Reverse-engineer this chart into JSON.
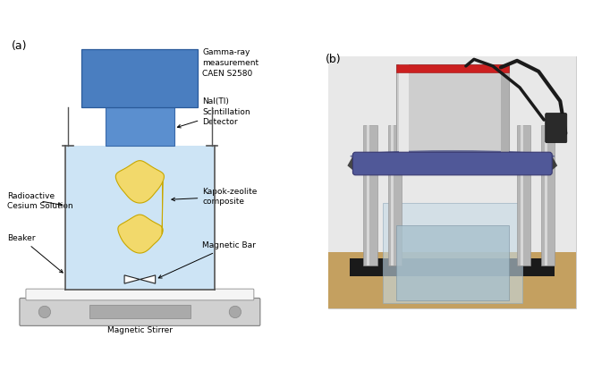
{
  "fig_width": 6.63,
  "fig_height": 4.15,
  "dpi": 100,
  "bg_color": "#ffffff",
  "panel_a_label": "(a)",
  "panel_b_label": "(b)",
  "detector_head_color": "#4a7ec0",
  "detector_neck_color": "#5b8fcf",
  "solution_color": "#cde4f5",
  "beaker_line_color": "#555555",
  "composite_color": "#f2d96b",
  "composite_edge_color": "#c8a800",
  "stirrer_gray": "#d0d0d0",
  "stirrer_dark": "#b0b0b0",
  "annotations": {
    "gamma_ray": "Gamma-ray\nmeasurement\nCAEN S2580",
    "nal_detector": "NaI(Tl)\nScintillation\nDetector",
    "kapok_zeolite": "Kapok-zeolite\ncomposite",
    "radioactive": "Radioactive\nCesium Solution",
    "beaker": "Beaker",
    "magnetic_bar": "Magnetic Bar",
    "magnetic_stirrer": "Magnetic Stirrer"
  },
  "ann_fs": 6.5,
  "label_fs": 9,
  "photo_bg": "#d8d8d8",
  "photo_wall": "#e0e0e0",
  "photo_floor": "#c4a060",
  "photo_mat": "#1a1a1a",
  "photo_pillar": "#b8b8b8",
  "photo_det_body": "#d0d0d0",
  "photo_det_red": "#cc2020",
  "photo_ring_color": "#5060a0",
  "photo_beaker_color": "#c8dde8",
  "photo_cable_color": "#1a1a1a",
  "photo_connector": "#2a2a2a"
}
